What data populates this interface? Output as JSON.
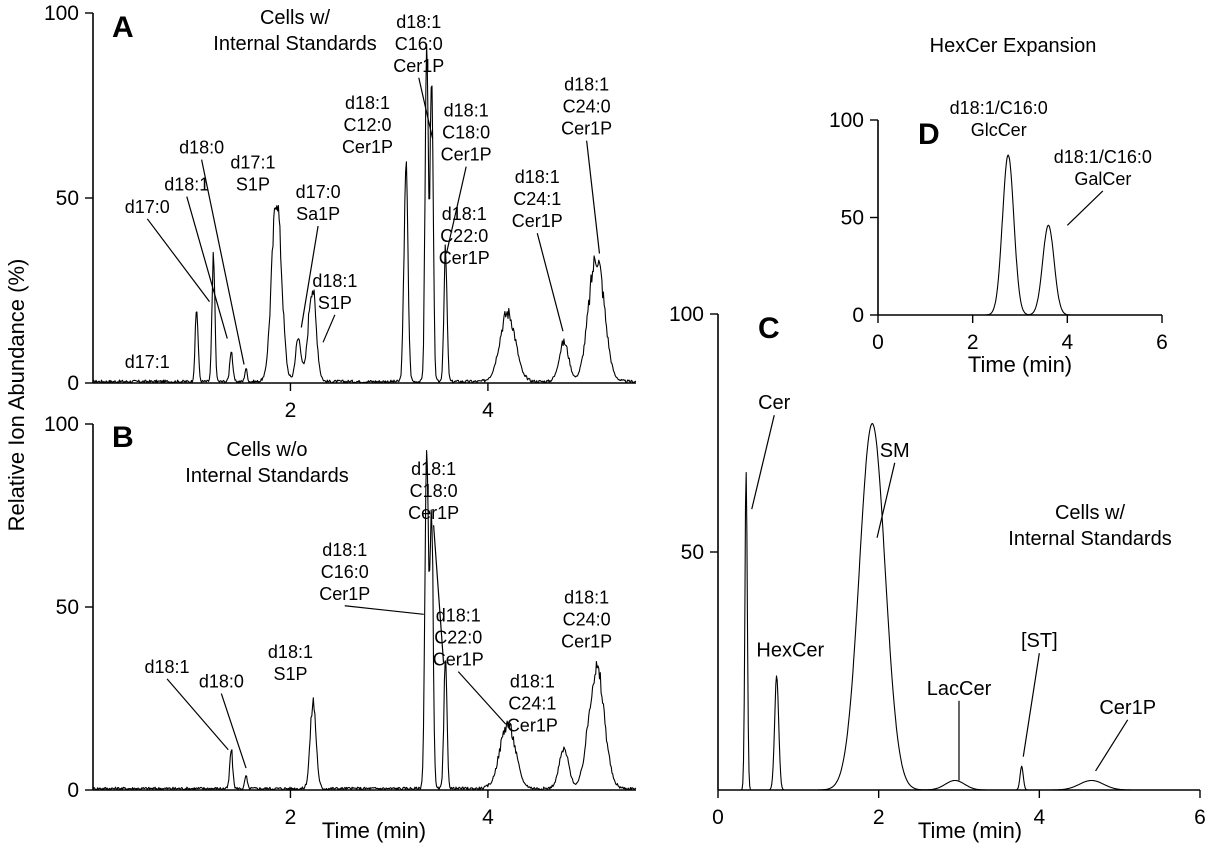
{
  "y_axis_label": "Relative Ion Abundance (%)",
  "chart_data": [
    {
      "id": "A",
      "type": "line",
      "panel_letter": "A",
      "title": "Cells w/\nInternal Standards",
      "xlabel": "",
      "ylabel": "Relative Ion Abundance (%)",
      "xlim": [
        0,
        5.5
      ],
      "ylim": [
        0,
        100
      ],
      "xticks": [
        2,
        4
      ],
      "yticks": [
        0,
        50,
        100
      ],
      "peaks": [
        {
          "x": 1.05,
          "h": 20,
          "w": 0.015
        },
        {
          "x": 1.22,
          "h": 33,
          "w": 0.015
        },
        {
          "x": 1.4,
          "h": 9,
          "w": 0.015
        },
        {
          "x": 1.55,
          "h": 4,
          "w": 0.012
        },
        {
          "x": 1.86,
          "h": 50,
          "w": 0.05
        },
        {
          "x": 2.08,
          "h": 12,
          "w": 0.03
        },
        {
          "x": 2.22,
          "h": 26,
          "w": 0.04
        },
        {
          "x": 3.17,
          "h": 59,
          "w": 0.02
        },
        {
          "x": 3.38,
          "h": 91,
          "w": 0.016
        },
        {
          "x": 3.43,
          "h": 80,
          "w": 0.016
        },
        {
          "x": 3.57,
          "h": 35,
          "w": 0.016
        },
        {
          "x": 4.2,
          "h": 19,
          "w": 0.08
        },
        {
          "x": 4.77,
          "h": 11,
          "w": 0.05
        },
        {
          "x": 5.1,
          "h": 34,
          "w": 0.08
        }
      ],
      "annotations": [
        {
          "text": "d17:1",
          "x": 0.55,
          "y": 4
        },
        {
          "text": "d17:0",
          "x": 0.55,
          "y": 46,
          "to": [
            1.18,
            22
          ]
        },
        {
          "text": "d18:1",
          "x": 0.95,
          "y": 52,
          "to": [
            1.36,
            12
          ]
        },
        {
          "text": "d18:0",
          "x": 1.1,
          "y": 62,
          "to": [
            1.53,
            5
          ]
        },
        {
          "text": "d17:1\nS1P",
          "x": 1.62,
          "y": 58
        },
        {
          "text": "d17:0\nSa1P",
          "x": 2.28,
          "y": 50,
          "to": [
            2.11,
            15
          ]
        },
        {
          "text": "d18:1\nS1P",
          "x": 2.45,
          "y": 26,
          "to": [
            2.33,
            11
          ]
        },
        {
          "text": "d18:1\nC12:0\nCer1P",
          "x": 2.78,
          "y": 74
        },
        {
          "text": "d18:1\nC16:0\nCer1P",
          "x": 3.3,
          "y": 96,
          "to": [
            3.44,
            66
          ]
        },
        {
          "text": "d18:1\nC18:0\nCer1P",
          "x": 3.78,
          "y": 72,
          "to": [
            3.58,
            35
          ]
        },
        {
          "text": "d18:1\nC22:0\nCer1P",
          "x": 3.76,
          "y": 44
        },
        {
          "text": "d18:1\nC24:1\nCer1P",
          "x": 4.5,
          "y": 54,
          "to": [
            4.76,
            14
          ]
        },
        {
          "text": "d18:1\nC24:0\nCer1P",
          "x": 5.0,
          "y": 79,
          "to": [
            5.13,
            35
          ]
        }
      ]
    },
    {
      "id": "B",
      "type": "line",
      "panel_letter": "B",
      "title": "Cells w/o\nInternal Standards",
      "xlabel": "Time (min)",
      "ylabel": "Relative Ion Abundance (%)",
      "xlim": [
        0,
        5.5
      ],
      "ylim": [
        0,
        100
      ],
      "xticks": [
        2,
        4
      ],
      "yticks": [
        0,
        50,
        100
      ],
      "peaks": [
        {
          "x": 1.4,
          "h": 11,
          "w": 0.015
        },
        {
          "x": 1.55,
          "h": 4,
          "w": 0.012
        },
        {
          "x": 2.23,
          "h": 24,
          "w": 0.03
        },
        {
          "x": 3.38,
          "h": 92,
          "w": 0.018
        },
        {
          "x": 3.43,
          "h": 75,
          "w": 0.016
        },
        {
          "x": 3.57,
          "h": 34,
          "w": 0.016
        },
        {
          "x": 4.2,
          "h": 18,
          "w": 0.08
        },
        {
          "x": 4.77,
          "h": 11,
          "w": 0.05
        },
        {
          "x": 5.1,
          "h": 33,
          "w": 0.08
        }
      ],
      "annotations": [
        {
          "text": "d18:1",
          "x": 0.75,
          "y": 32,
          "to": [
            1.37,
            11
          ]
        },
        {
          "text": "d18:0",
          "x": 1.3,
          "y": 28,
          "to": [
            1.55,
            6
          ]
        },
        {
          "text": "d18:1\nS1P",
          "x": 2.0,
          "y": 36
        },
        {
          "text": "d18:1\nC16:0\nCer1P",
          "x": 2.55,
          "y": 64,
          "to": [
            3.35,
            48
          ]
        },
        {
          "text": "d18:1\nC18:0\nCer1P",
          "x": 3.45,
          "y": 86,
          "to": [
            3.55,
            35
          ]
        },
        {
          "text": "d18:1\nC22:0\nCer1P",
          "x": 3.7,
          "y": 46,
          "to": [
            4.18,
            18
          ]
        },
        {
          "text": "d18:1\nC24:1\nCer1P",
          "x": 4.45,
          "y": 28
        },
        {
          "text": "d18:1\nC24:0\nCer1P",
          "x": 5.0,
          "y": 51
        }
      ]
    },
    {
      "id": "C",
      "type": "line",
      "panel_letter": "C",
      "title": "Cells w/\nInternal Standards",
      "xlabel": "Time (min)",
      "ylabel": "",
      "xlim": [
        0,
        6
      ],
      "ylim": [
        0,
        100
      ],
      "xticks": [
        0,
        2,
        4,
        6
      ],
      "yticks": [
        50,
        100
      ],
      "peaks": [
        {
          "x": 0.35,
          "h": 67,
          "w": 0.015
        },
        {
          "x": 0.73,
          "h": 24,
          "w": 0.025
        },
        {
          "x": 1.92,
          "h": 77,
          "w": 0.16
        },
        {
          "x": 2.95,
          "h": 2,
          "w": 0.12
        },
        {
          "x": 3.78,
          "h": 5,
          "w": 0.02
        },
        {
          "x": 4.65,
          "h": 2,
          "w": 0.15
        }
      ],
      "annotations": [
        {
          "text": "Cer",
          "x": 0.7,
          "y": 80,
          "to": [
            0.42,
            59
          ]
        },
        {
          "text": "HexCer",
          "x": 0.9,
          "y": 28
        },
        {
          "text": "SM",
          "x": 2.2,
          "y": 70,
          "to": [
            1.98,
            53
          ]
        },
        {
          "text": "LacCer",
          "x": 3.0,
          "y": 20,
          "to": [
            3.0,
            2
          ]
        },
        {
          "text": "[ST]",
          "x": 4.0,
          "y": 30,
          "to": [
            3.8,
            7
          ]
        },
        {
          "text": "Cer1P",
          "x": 5.1,
          "y": 16,
          "to": [
            4.7,
            4
          ]
        }
      ]
    },
    {
      "id": "D",
      "type": "line",
      "panel_letter": "D",
      "title": "HexCer Expansion",
      "xlabel": "Time (min)",
      "ylabel": "",
      "xlim": [
        0,
        6
      ],
      "ylim": [
        0,
        100
      ],
      "xticks": [
        0,
        2,
        4,
        6
      ],
      "yticks": [
        0,
        50,
        100
      ],
      "peaks": [
        {
          "x": 2.75,
          "h": 82,
          "w": 0.12
        },
        {
          "x": 3.6,
          "h": 46,
          "w": 0.12
        }
      ],
      "annotations": [
        {
          "text": "d18:1/C16:0\nGlcCer",
          "x": 2.55,
          "y": 103
        },
        {
          "text": "d18:1/C16:0\nGalCer",
          "x": 4.75,
          "y": 78,
          "to": [
            4.0,
            46
          ]
        }
      ]
    }
  ]
}
